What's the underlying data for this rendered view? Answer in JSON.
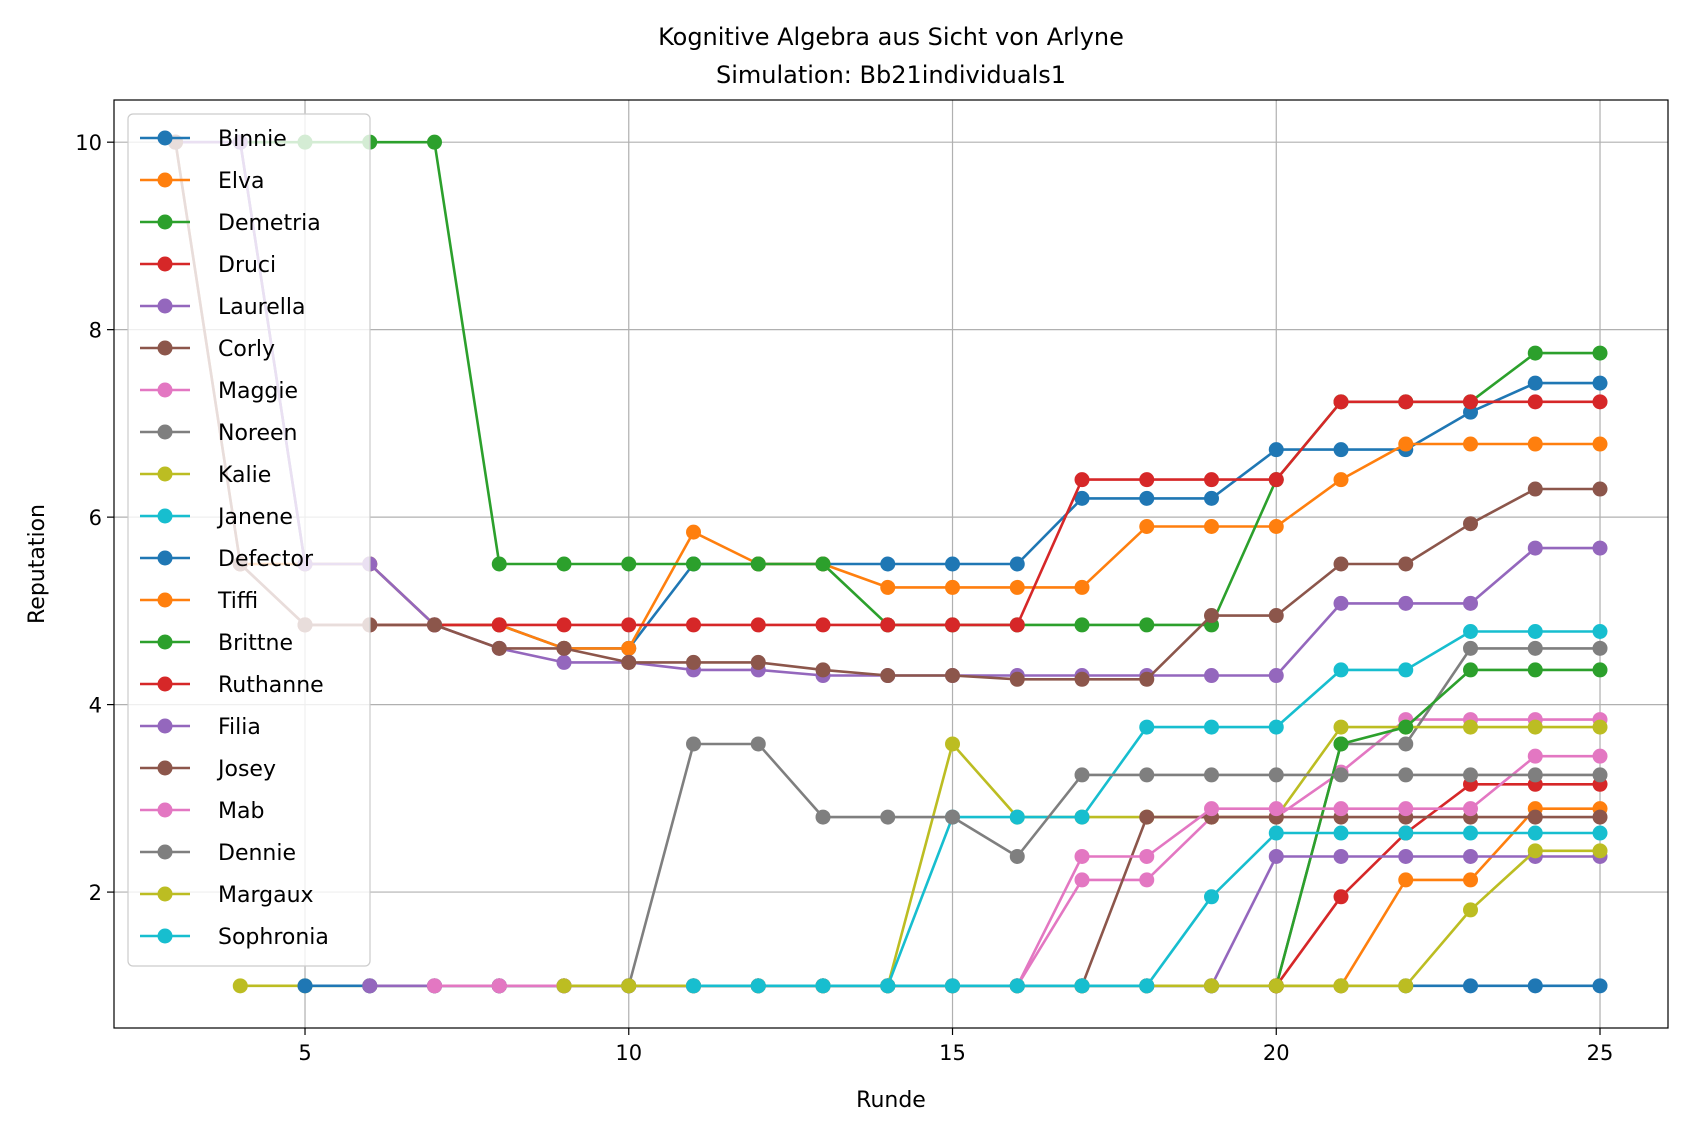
{
  "chart_data": {
    "type": "line",
    "title": "Kognitive Algebra aus Sicht von Arlyne",
    "subtitle": "Simulation: Bb21individuals1",
    "xlabel": "Runde",
    "ylabel": "Reputation",
    "xlim": [
      2.05,
      26.05
    ],
    "ylim": [
      0.55,
      10.45
    ],
    "xticks": [
      5,
      10,
      15,
      20,
      25
    ],
    "yticks": [
      2,
      4,
      6,
      8,
      10
    ],
    "grid": true,
    "legend_position": "upper-left",
    "series": [
      {
        "name": "Binnie",
        "color": "#1f77b4",
        "x": [
          3,
          4,
          5,
          6,
          7,
          8,
          9,
          10,
          11,
          12,
          13,
          14,
          15,
          16,
          17,
          18,
          19,
          20,
          21,
          22,
          23,
          24,
          25
        ],
        "y": [
          10,
          10,
          5.5,
          5.5,
          4.85,
          4.85,
          4.6,
          4.6,
          5.5,
          5.5,
          5.5,
          5.5,
          5.5,
          5.5,
          6.2,
          6.2,
          6.2,
          6.72,
          6.72,
          6.72,
          7.12,
          7.43,
          7.43
        ]
      },
      {
        "name": "Elva",
        "color": "#ff7f0e",
        "x": [
          3,
          4,
          5,
          6,
          7,
          8,
          9,
          10,
          11,
          12,
          13,
          14,
          15,
          16,
          17,
          18,
          19,
          20,
          21,
          22,
          23,
          24,
          25
        ],
        "y": [
          10,
          5.5,
          5.5,
          5.5,
          4.85,
          4.85,
          4.6,
          4.6,
          5.84,
          5.5,
          5.5,
          5.25,
          5.25,
          5.25,
          5.25,
          5.9,
          5.9,
          5.9,
          6.4,
          6.78,
          6.78,
          6.78,
          6.78
        ]
      },
      {
        "name": "Demetria",
        "color": "#2ca02c",
        "x": [
          4,
          5,
          6,
          7,
          8,
          9,
          10,
          11,
          12,
          13,
          14,
          15,
          16,
          17,
          18,
          19,
          20,
          21,
          22,
          23,
          24,
          25
        ],
        "y": [
          10,
          10,
          10,
          10,
          5.5,
          5.5,
          5.5,
          5.5,
          5.5,
          5.5,
          4.85,
          4.85,
          4.85,
          4.85,
          4.85,
          4.85,
          6.4,
          7.23,
          7.23,
          7.23,
          7.75,
          7.75
        ]
      },
      {
        "name": "Druci",
        "color": "#d62728",
        "x": [
          4,
          5,
          6,
          7,
          8,
          9,
          10,
          11,
          12,
          13,
          14,
          15,
          16,
          17,
          18,
          19,
          20,
          21,
          22,
          23,
          24,
          25
        ],
        "y": [
          5.5,
          4.85,
          4.85,
          4.85,
          4.85,
          4.85,
          4.85,
          4.85,
          4.85,
          4.85,
          4.85,
          4.85,
          4.85,
          6.4,
          6.4,
          6.4,
          6.4,
          7.23,
          7.23,
          7.23,
          7.23,
          7.23
        ]
      },
      {
        "name": "Laurella",
        "color": "#9467bd",
        "x": [
          3,
          4,
          5,
          6,
          7,
          8,
          9,
          10,
          11,
          12,
          13,
          14,
          15,
          16,
          17,
          18,
          19,
          20,
          21,
          22,
          23,
          24,
          25
        ],
        "y": [
          10,
          10,
          5.5,
          5.5,
          4.85,
          4.6,
          4.45,
          4.45,
          4.37,
          4.37,
          4.31,
          4.31,
          4.31,
          4.31,
          4.31,
          4.31,
          4.31,
          4.31,
          5.08,
          5.08,
          5.08,
          5.67,
          5.67
        ]
      },
      {
        "name": "Corly",
        "color": "#8c564b",
        "x": [
          3,
          4,
          5,
          6,
          7,
          8,
          9,
          10,
          11,
          12,
          13,
          14,
          15,
          16,
          17,
          18,
          19,
          20,
          21,
          22,
          23,
          24,
          25
        ],
        "y": [
          10,
          5.5,
          4.85,
          4.85,
          4.85,
          4.6,
          4.6,
          4.45,
          4.45,
          4.45,
          4.37,
          4.31,
          4.31,
          4.27,
          4.27,
          4.27,
          4.95,
          4.95,
          5.5,
          5.5,
          5.93,
          6.3,
          6.3
        ]
      },
      {
        "name": "Maggie",
        "color": "#e377c2",
        "x": [
          6,
          7,
          8,
          9,
          10,
          11,
          12,
          13,
          14,
          15,
          16,
          17,
          18,
          19,
          20,
          21,
          22,
          23,
          24,
          25
        ],
        "y": [
          1,
          1,
          1,
          1,
          1,
          1,
          1,
          1,
          1,
          1,
          1,
          2.13,
          2.13,
          2.8,
          2.8,
          3.28,
          3.84,
          3.84,
          3.84,
          3.84
        ]
      },
      {
        "name": "Noreen",
        "color": "#7f7f7f",
        "x": [
          8,
          9,
          10,
          11,
          12,
          13,
          14,
          15,
          16,
          17,
          18,
          19,
          20,
          21,
          22,
          23,
          24,
          25
        ],
        "y": [
          1,
          1,
          1,
          1,
          1,
          1,
          1,
          1,
          1,
          1,
          1,
          1,
          1,
          3.58,
          3.58,
          4.6,
          4.6,
          4.6
        ]
      },
      {
        "name": "Kalie",
        "color": "#bcbd22",
        "x": [
          4,
          5,
          6,
          7,
          8,
          9,
          10,
          11,
          12,
          13,
          14,
          15,
          16,
          17,
          18,
          19,
          20,
          21,
          22,
          23,
          24,
          25
        ],
        "y": [
          1,
          1,
          1,
          1,
          1,
          1,
          1,
          1,
          1,
          1,
          1,
          3.58,
          2.8,
          2.8,
          2.8,
          2.8,
          2.8,
          3.76,
          3.76,
          3.76,
          3.76,
          3.76
        ]
      },
      {
        "name": "Janene",
        "color": "#17becf",
        "x": [
          10,
          11,
          12,
          13,
          14,
          15,
          16,
          17,
          18,
          19,
          20,
          21,
          22,
          23,
          24,
          25
        ],
        "y": [
          1,
          1,
          1,
          1,
          1,
          2.8,
          2.8,
          2.8,
          3.76,
          3.76,
          3.76,
          4.37,
          4.37,
          4.78,
          4.78,
          4.78
        ]
      },
      {
        "name": "Defector",
        "color": "#1f77b4",
        "x": [
          5,
          6,
          7,
          8,
          9,
          10,
          11,
          12,
          13,
          14,
          15,
          16,
          17,
          18,
          19,
          20,
          21,
          22,
          23,
          24,
          25
        ],
        "y": [
          1,
          1,
          1,
          1,
          1,
          1,
          1,
          1,
          1,
          1,
          1,
          1,
          1,
          1,
          1,
          1,
          1,
          1,
          1,
          1,
          1
        ]
      },
      {
        "name": "Tiffi",
        "color": "#ff7f0e",
        "x": [
          20,
          21,
          22,
          23,
          24,
          25
        ],
        "y": [
          1,
          1,
          2.13,
          2.13,
          2.89,
          2.89
        ]
      },
      {
        "name": "Brittne",
        "color": "#2ca02c",
        "x": [
          20,
          21,
          22,
          23,
          24,
          25
        ],
        "y": [
          1,
          3.58,
          3.76,
          4.37,
          4.37,
          4.37
        ]
      },
      {
        "name": "Ruthanne",
        "color": "#d62728",
        "x": [
          20,
          21,
          22,
          23,
          24,
          25
        ],
        "y": [
          1,
          1.95,
          2.63,
          3.15,
          3.15,
          3.15
        ]
      },
      {
        "name": "Filia",
        "color": "#9467bd",
        "x": [
          6,
          7,
          8,
          9,
          10,
          11,
          12,
          13,
          14,
          15,
          16,
          17,
          18,
          19,
          20,
          21,
          22,
          23,
          24,
          25
        ],
        "y": [
          1,
          1,
          1,
          1,
          1,
          1,
          1,
          1,
          1,
          1,
          1,
          1,
          1,
          1,
          2.38,
          2.38,
          2.38,
          2.38,
          2.38,
          2.38
        ]
      },
      {
        "name": "Josey",
        "color": "#8c564b",
        "x": [
          17,
          18,
          19,
          20,
          21,
          22,
          23,
          24,
          25
        ],
        "y": [
          1,
          2.8,
          2.8,
          2.8,
          2.8,
          2.8,
          2.8,
          2.8,
          2.8
        ]
      },
      {
        "name": "Mab",
        "color": "#e377c2",
        "x": [
          7,
          8,
          9,
          10,
          11,
          12,
          13,
          14,
          15,
          16,
          17,
          18,
          19,
          20,
          21,
          22,
          23,
          24,
          25
        ],
        "y": [
          1,
          1,
          1,
          1,
          1,
          1,
          1,
          1,
          1,
          1,
          2.38,
          2.38,
          2.89,
          2.89,
          2.89,
          2.89,
          2.89,
          3.45,
          3.45
        ]
      },
      {
        "name": "Dennie",
        "color": "#7f7f7f",
        "x": [
          10,
          11,
          12,
          13,
          14,
          15,
          16,
          17,
          18,
          19,
          20,
          21,
          22,
          23,
          24,
          25
        ],
        "y": [
          1,
          3.58,
          3.58,
          2.8,
          2.8,
          2.8,
          2.38,
          3.25,
          3.25,
          3.25,
          3.25,
          3.25,
          3.25,
          3.25,
          3.25,
          3.25
        ]
      },
      {
        "name": "Margaux",
        "color": "#bcbd22",
        "x": [
          9,
          10,
          11,
          12,
          13,
          14,
          15,
          16,
          17,
          18,
          19,
          20,
          21,
          22,
          23,
          24,
          25
        ],
        "y": [
          1,
          1,
          1,
          1,
          1,
          1,
          1,
          1,
          1,
          1,
          1,
          1,
          1,
          1,
          1.81,
          2.44,
          2.44
        ]
      },
      {
        "name": "Sophronia",
        "color": "#17becf",
        "x": [
          11,
          12,
          13,
          14,
          15,
          16,
          17,
          18,
          19,
          20,
          21,
          22,
          23,
          24,
          25
        ],
        "y": [
          1,
          1,
          1,
          1,
          1,
          1,
          1,
          1,
          1.95,
          2.63,
          2.63,
          2.63,
          2.63,
          2.63,
          2.63
        ]
      }
    ]
  }
}
